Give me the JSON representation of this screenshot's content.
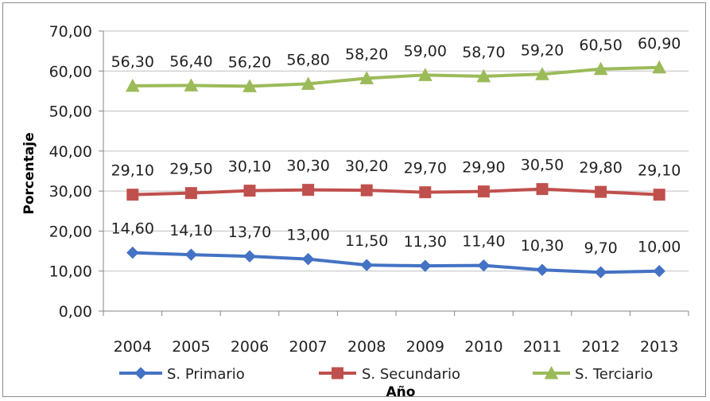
{
  "chart_data": {
    "type": "line",
    "title": "",
    "xlabel": "Año",
    "ylabel": "Porcentaje",
    "ylim": [
      0,
      70
    ],
    "y_step": 10,
    "y_ticks": [
      "0,00",
      "10,00",
      "20,00",
      "30,00",
      "40,00",
      "50,00",
      "60,00",
      "70,00"
    ],
    "grid": true,
    "legend_position": "bottom",
    "categories": [
      "2004",
      "2005",
      "2006",
      "2007",
      "2008",
      "2009",
      "2010",
      "2011",
      "2012",
      "2013"
    ],
    "series": [
      {
        "name": "S. Primario",
        "color": "#4472C4",
        "marker": "diamond",
        "values": [
          14.6,
          14.1,
          13.7,
          13.0,
          11.5,
          11.3,
          11.4,
          10.3,
          9.7,
          10.0
        ],
        "labels": [
          "14,60",
          "14,10",
          "13,70",
          "13,00",
          "11,50",
          "11,30",
          "11,40",
          "10,30",
          "9,70",
          "10,00"
        ]
      },
      {
        "name": "S. Secundario",
        "color": "#C0504D",
        "marker": "square",
        "values": [
          29.1,
          29.5,
          30.1,
          30.3,
          30.2,
          29.7,
          29.9,
          30.5,
          29.8,
          29.1
        ],
        "labels": [
          "29,10",
          "29,50",
          "30,10",
          "30,30",
          "30,20",
          "29,70",
          "29,90",
          "30,50",
          "29,80",
          "29,10"
        ]
      },
      {
        "name": "S. Terciario",
        "color": "#9BBB59",
        "marker": "triangle",
        "values": [
          56.3,
          56.4,
          56.2,
          56.8,
          58.2,
          59.0,
          58.7,
          59.2,
          60.5,
          60.9
        ],
        "labels": [
          "56,30",
          "56,40",
          "56,20",
          "56,80",
          "58,20",
          "59,00",
          "58,70",
          "59,20",
          "60,50",
          "60,90"
        ]
      }
    ]
  }
}
